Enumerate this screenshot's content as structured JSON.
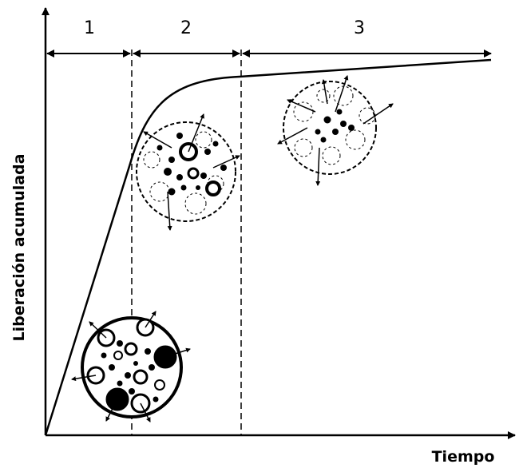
{
  "axes": {
    "y_label": "Liberación acumulada",
    "x_label": "Tiempo"
  },
  "phases": [
    {
      "label": "1"
    },
    {
      "label": "2"
    },
    {
      "label": "3"
    }
  ]
}
